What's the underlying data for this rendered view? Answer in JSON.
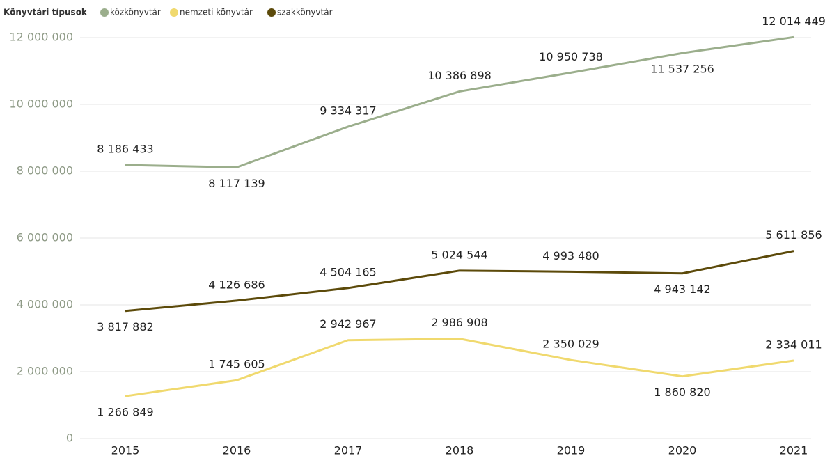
{
  "chart_data": {
    "type": "line",
    "legend_title": "Könyvtári típusok",
    "categories": [
      "2015",
      "2016",
      "2017",
      "2018",
      "2019",
      "2020",
      "2021"
    ],
    "series": [
      {
        "name": "közkönyvtár",
        "color": "#9bae8c",
        "values": [
          8186433,
          8117139,
          9334317,
          10386898,
          10950738,
          11537256,
          12014449
        ],
        "value_labels": [
          "8 186 433",
          "8 117 139",
          "9 334 317",
          "10 386 898",
          "10 950 738",
          "11 537 256",
          "12 014 449"
        ]
      },
      {
        "name": "nemzeti könyvtár",
        "color": "#f0d96e",
        "values": [
          1266849,
          1745605,
          2942967,
          2986908,
          2350029,
          1860820,
          2334011
        ],
        "value_labels": [
          "1 266 849",
          "1 745 605",
          "2 942 967",
          "2 986 908",
          "2 350 029",
          "1 860 820",
          "2 334 011"
        ]
      },
      {
        "name": "szakkönyvtár",
        "color": "#5c4a0a",
        "values": [
          3817882,
          4126686,
          4504165,
          5024544,
          4993480,
          4943142,
          5611856
        ],
        "value_labels": [
          "3 817 882",
          "4 126 686",
          "4 504 165",
          "5 024 544",
          "4 993 480",
          "4 943 142",
          "5 611 856"
        ]
      }
    ],
    "ylim": [
      0,
      12000000
    ],
    "yticks": [
      0,
      {
        "value": 2000000,
        "label": "2 000 000"
      },
      {
        "value": 4000000,
        "label": "4 000 000"
      },
      {
        "value": 6000000,
        "label": "6 000 000"
      },
      {
        "value": 8000000,
        "label": "8 000 000"
      },
      {
        "value": 10000000,
        "label": "10 000 000"
      },
      {
        "value": 12000000,
        "label": "12 000 000"
      }
    ],
    "grid": true
  }
}
